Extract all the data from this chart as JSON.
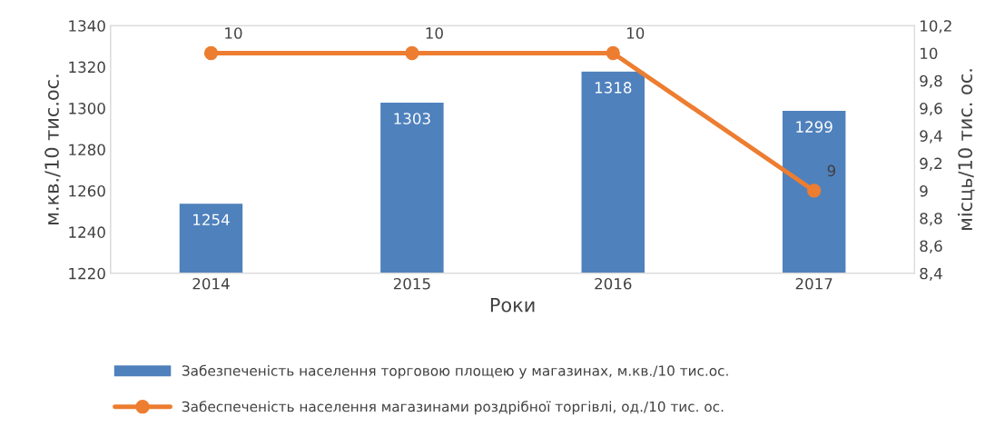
{
  "chart_data": {
    "type": "bar",
    "categories": [
      "2014",
      "2015",
      "2016",
      "2017"
    ],
    "xlabel": "Роки",
    "ylabel": "м.кв./10 тис.ос.",
    "y2label": "місць/10 тис. ос.",
    "series": [
      {
        "name": "Забезпеченість населення торговою площею у магазинах, м.кв./10 тис.ос.",
        "color": "#4f81bd",
        "values": [
          1254,
          1303,
          1318,
          1299
        ]
      },
      {
        "name": "Забеспеченість населення магазинами роздрібної торгівлі, од./10 тис. ос.",
        "type": "line",
        "axis": "y2",
        "color": "#ed7d31",
        "marker": "circle",
        "values": [
          10,
          10,
          10,
          9
        ]
      }
    ],
    "ylim": [
      1220,
      1340
    ],
    "yticks": [
      1220,
      1240,
      1260,
      1280,
      1300,
      1320,
      1340
    ],
    "y2lim": [
      8.4,
      10.2
    ],
    "y2ticks": [
      {
        "value": 8.4,
        "label": "8,4"
      },
      {
        "value": 8.6,
        "label": "8,6"
      },
      {
        "value": 8.8,
        "label": "8,8"
      },
      9,
      {
        "value": 9.2,
        "label": "9,2"
      },
      {
        "value": 9.4,
        "label": "9,4"
      },
      {
        "value": 9.6,
        "label": "9,6"
      },
      {
        "value": 9.8,
        "label": "9,8"
      },
      10,
      {
        "value": 10.2,
        "label": "10,2"
      }
    ],
    "data_labels": true,
    "grid": false,
    "legend": "bottom"
  }
}
